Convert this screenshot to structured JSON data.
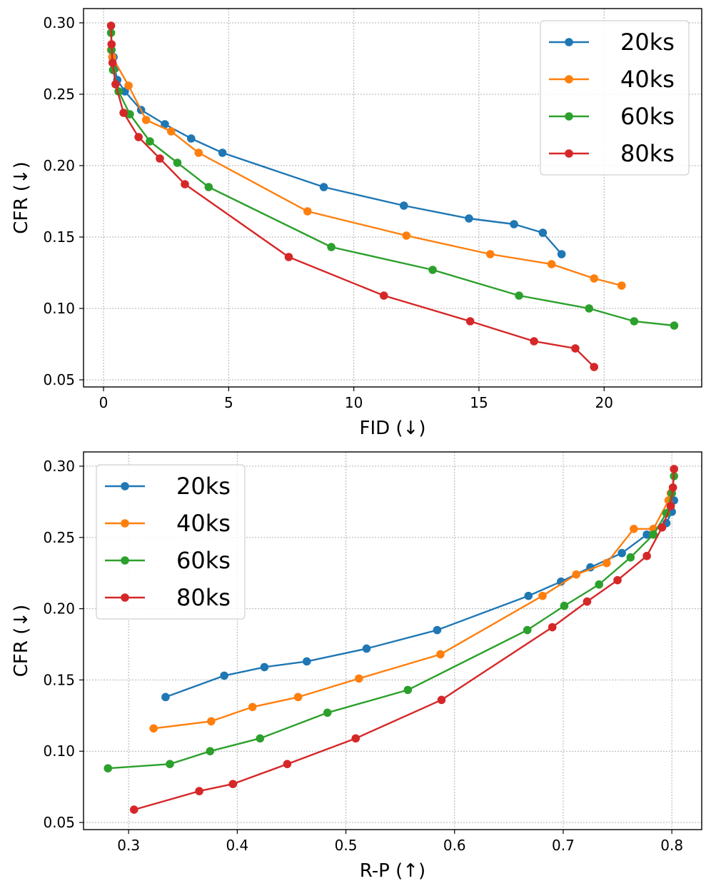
{
  "chart_data": [
    {
      "type": "line",
      "xlabel": "FID (↓)",
      "ylabel": "CFR (↓)",
      "xlim": [
        -0.8,
        23.9
      ],
      "ylim": [
        0.045,
        0.31
      ],
      "xticks": [
        0,
        5,
        10,
        15,
        20
      ],
      "xtick_labels": [
        "0",
        "5",
        "10",
        "15",
        "20"
      ],
      "yticks": [
        0.05,
        0.1,
        0.15,
        0.2,
        0.25,
        0.3
      ],
      "ytick_labels": [
        "0.05",
        "0.10",
        "0.15",
        "0.20",
        "0.25",
        "0.30"
      ],
      "grid": true,
      "legend_position": "upper right",
      "series": [
        {
          "name": "20ks",
          "color": "#1f77b4",
          "x": [
            0.4,
            0.45,
            0.55,
            0.85,
            1.5,
            2.45,
            3.5,
            4.75,
            8.8,
            12.0,
            14.6,
            16.4,
            17.55,
            18.3
          ],
          "y": [
            0.276,
            0.268,
            0.26,
            0.252,
            0.239,
            0.229,
            0.219,
            0.209,
            0.185,
            0.172,
            0.163,
            0.159,
            0.153,
            0.138
          ]
        },
        {
          "name": "40ks",
          "color": "#ff7f0e",
          "x": [
            0.3,
            0.35,
            1.0,
            1.7,
            2.7,
            3.8,
            8.15,
            12.1,
            15.45,
            17.9,
            19.6,
            20.7
          ],
          "y": [
            0.281,
            0.276,
            0.256,
            0.232,
            0.224,
            0.209,
            0.168,
            0.151,
            0.138,
            0.131,
            0.121,
            0.116
          ]
        },
        {
          "name": "60ks",
          "color": "#2ca02c",
          "x": [
            0.3,
            0.32,
            0.38,
            0.6,
            1.05,
            1.85,
            2.95,
            4.2,
            9.1,
            13.15,
            16.6,
            19.4,
            21.2,
            22.8
          ],
          "y": [
            0.293,
            0.281,
            0.267,
            0.252,
            0.236,
            0.217,
            0.202,
            0.185,
            0.143,
            0.127,
            0.109,
            0.1,
            0.091,
            0.088
          ]
        },
        {
          "name": "80ks",
          "color": "#d62728",
          "x": [
            0.3,
            0.32,
            0.36,
            0.48,
            0.8,
            1.4,
            2.25,
            3.25,
            7.4,
            11.2,
            14.65,
            17.2,
            18.85,
            19.6
          ],
          "y": [
            0.298,
            0.285,
            0.272,
            0.257,
            0.237,
            0.22,
            0.205,
            0.187,
            0.136,
            0.109,
            0.091,
            0.077,
            0.072,
            0.059
          ]
        }
      ]
    },
    {
      "type": "line",
      "xlabel": "R-P (↑)",
      "ylabel": "CFR (↓)",
      "xlim": [
        0.2585,
        0.8275
      ],
      "ylim": [
        0.045,
        0.31
      ],
      "xticks": [
        0.3,
        0.4,
        0.5,
        0.6,
        0.7,
        0.8
      ],
      "xtick_labels": [
        "0.3",
        "0.4",
        "0.5",
        "0.6",
        "0.7",
        "0.8"
      ],
      "yticks": [
        0.05,
        0.1,
        0.15,
        0.2,
        0.25,
        0.3
      ],
      "ytick_labels": [
        "0.05",
        "0.10",
        "0.15",
        "0.20",
        "0.25",
        "0.30"
      ],
      "grid": true,
      "legend_position": "upper left",
      "series": [
        {
          "name": "20ks",
          "color": "#1f77b4",
          "x": [
            0.802,
            0.8,
            0.795,
            0.777,
            0.754,
            0.725,
            0.698,
            0.668,
            0.584,
            0.519,
            0.464,
            0.425,
            0.388,
            0.334
          ],
          "y": [
            0.276,
            0.268,
            0.26,
            0.252,
            0.239,
            0.229,
            0.219,
            0.209,
            0.185,
            0.172,
            0.163,
            0.159,
            0.153,
            0.138
          ]
        },
        {
          "name": "40ks",
          "color": "#ff7f0e",
          "x": [
            0.799,
            0.797,
            0.783,
            0.765,
            0.74,
            0.712,
            0.681,
            0.587,
            0.512,
            0.456,
            0.414,
            0.376,
            0.323
          ],
          "y": [
            0.281,
            0.276,
            0.256,
            0.256,
            0.232,
            0.224,
            0.209,
            0.168,
            0.151,
            0.138,
            0.131,
            0.121,
            0.116
          ]
        },
        {
          "name": "60ks",
          "color": "#2ca02c",
          "x": [
            0.802,
            0.8,
            0.795,
            0.783,
            0.762,
            0.733,
            0.701,
            0.667,
            0.557,
            0.483,
            0.421,
            0.375,
            0.338,
            0.281
          ],
          "y": [
            0.293,
            0.281,
            0.267,
            0.252,
            0.236,
            0.217,
            0.202,
            0.185,
            0.143,
            0.127,
            0.109,
            0.1,
            0.091,
            0.088
          ]
        },
        {
          "name": "80ks",
          "color": "#d62728",
          "x": [
            0.802,
            0.801,
            0.799,
            0.791,
            0.777,
            0.75,
            0.722,
            0.69,
            0.588,
            0.509,
            0.446,
            0.396,
            0.365,
            0.305
          ],
          "y": [
            0.298,
            0.285,
            0.272,
            0.257,
            0.237,
            0.22,
            0.205,
            0.187,
            0.136,
            0.109,
            0.091,
            0.077,
            0.072,
            0.059
          ]
        }
      ]
    }
  ]
}
